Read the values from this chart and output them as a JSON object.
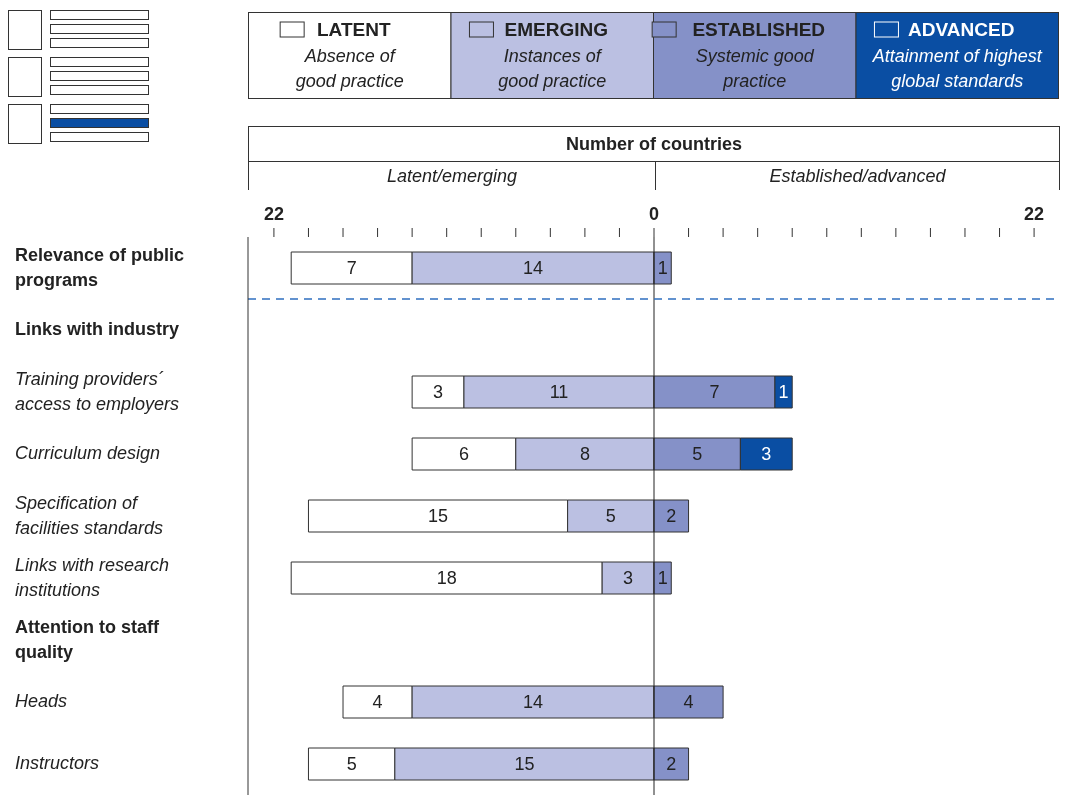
{
  "chart_data": {
    "type": "bar",
    "orientation": "horizontal",
    "xlabel": "Number of countries",
    "categories": [
      "Relevance of public programs",
      "Links with industry",
      "Training providers´ access to employers",
      "Curriculum design",
      "Specification of facilities standards",
      "Links with research institutions",
      "Attention to staff quality",
      "Heads",
      "Instructors"
    ],
    "series": [
      {
        "name": "LATENT",
        "color": "#ffffff",
        "values": [
          7,
          null,
          3,
          6,
          15,
          18,
          null,
          4,
          5
        ],
        "base": [
          -21,
          null,
          -14,
          -14,
          -20,
          -21,
          null,
          -18,
          -20
        ]
      },
      {
        "name": "EMERGING",
        "color": "#bbc0e2",
        "values": [
          14,
          null,
          11,
          8,
          5,
          3,
          null,
          14,
          15
        ],
        "base": [
          -14,
          null,
          -11,
          -8,
          -5,
          -3,
          null,
          -14,
          -15
        ]
      },
      {
        "name": "ESTABLISHED",
        "color": "#8591c8",
        "values": [
          1,
          null,
          7,
          5,
          2,
          1,
          null,
          4,
          2
        ],
        "base": [
          0,
          null,
          0,
          0,
          0,
          0,
          null,
          0,
          0
        ]
      },
      {
        "name": "ADVANCED",
        "color": "#0a4ea3",
        "values": [
          null,
          null,
          1,
          3,
          null,
          null,
          null,
          null,
          null
        ],
        "base": [
          null,
          null,
          7,
          5,
          null,
          null,
          null,
          null,
          null
        ]
      }
    ],
    "data_labels": true,
    "xlim": [
      -23.5,
      23.5
    ],
    "xticks": [
      {
        "value": -22,
        "label": "22"
      },
      {
        "value": -20,
        "label": null
      },
      {
        "value": -18,
        "label": null
      },
      {
        "value": -16,
        "label": null
      },
      {
        "value": -14,
        "label": null
      },
      {
        "value": -12,
        "label": null
      },
      {
        "value": -10,
        "label": null
      },
      {
        "value": -8,
        "label": null
      },
      {
        "value": -6,
        "label": null
      },
      {
        "value": -4,
        "label": null
      },
      {
        "value": -2,
        "label": null
      },
      0,
      {
        "value": 2,
        "label": null
      },
      {
        "value": 4,
        "label": null
      },
      {
        "value": 6,
        "label": null
      },
      {
        "value": 8,
        "label": null
      },
      {
        "value": 10,
        "label": null
      },
      {
        "value": 12,
        "label": null
      },
      {
        "value": 14,
        "label": null
      },
      {
        "value": 16,
        "label": null
      },
      {
        "value": 18,
        "label": null
      },
      {
        "value": 20,
        "label": null
      },
      22
    ],
    "ref_lines": [
      {
        "axis": "x",
        "value": 0,
        "color": "#222222",
        "line_style": "solid"
      },
      {
        "axis": "y",
        "value": "Links with industry",
        "color": "#2f6fc0",
        "line_style": "dashed"
      }
    ],
    "annotations": [
      "Absence of good practice",
      "Instances of good practice",
      "Systemic good practice",
      "Attainment of highest global standards",
      "Latent/emerging",
      "Established/advanced"
    ],
    "legend": "top"
  }
}
